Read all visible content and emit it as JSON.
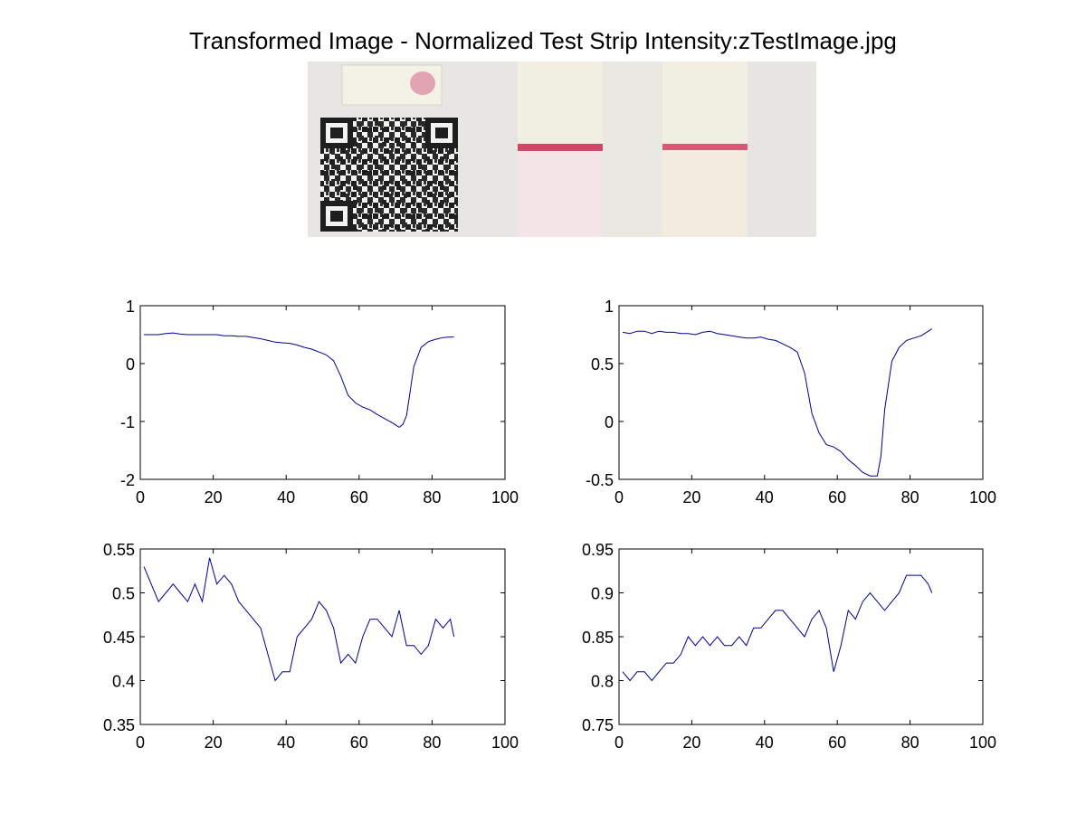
{
  "title": "Transformed Image - Normalized Test Strip Intensity:zTestImage.jpg",
  "colors": {
    "line": "#00008b",
    "axis": "#000000",
    "strip_line": "#d0466b",
    "qr": "#1e1e1e"
  },
  "chart_data": [
    {
      "type": "line",
      "xlim": [
        0,
        100
      ],
      "ylim": [
        -2,
        1
      ],
      "xticks": [
        "0",
        "20",
        "40",
        "60",
        "80",
        "100"
      ],
      "yticks": [
        "1",
        "0",
        "-1",
        "-2"
      ],
      "grid": false,
      "x": [
        1,
        3,
        5,
        7,
        9,
        11,
        13,
        15,
        17,
        19,
        21,
        23,
        25,
        27,
        29,
        31,
        33,
        35,
        37,
        39,
        41,
        43,
        45,
        47,
        49,
        51,
        53,
        55,
        57,
        59,
        61,
        63,
        65,
        67,
        69,
        71,
        72,
        73,
        75,
        77,
        79,
        81,
        83,
        85,
        86
      ],
      "y": [
        0.5,
        0.5,
        0.5,
        0.52,
        0.53,
        0.51,
        0.5,
        0.5,
        0.5,
        0.5,
        0.5,
        0.48,
        0.48,
        0.47,
        0.47,
        0.45,
        0.43,
        0.4,
        0.37,
        0.36,
        0.35,
        0.32,
        0.28,
        0.25,
        0.2,
        0.15,
        0.05,
        -0.22,
        -0.55,
        -0.68,
        -0.75,
        -0.8,
        -0.88,
        -0.95,
        -1.02,
        -1.1,
        -1.05,
        -0.9,
        -0.05,
        0.28,
        0.38,
        0.42,
        0.45,
        0.46,
        0.46
      ]
    },
    {
      "type": "line",
      "xlim": [
        0,
        100
      ],
      "ylim": [
        -0.5,
        1
      ],
      "xticks": [
        "0",
        "20",
        "40",
        "60",
        "80",
        "100"
      ],
      "yticks": [
        "1",
        "0.5",
        "0",
        "-0.5"
      ],
      "grid": false,
      "x": [
        1,
        3,
        5,
        7,
        9,
        11,
        13,
        15,
        17,
        19,
        21,
        23,
        25,
        27,
        29,
        31,
        33,
        35,
        37,
        39,
        41,
        43,
        45,
        47,
        49,
        51,
        53,
        55,
        57,
        59,
        61,
        63,
        65,
        67,
        69,
        71,
        72,
        73,
        75,
        77,
        79,
        81,
        83,
        85,
        86
      ],
      "y": [
        0.77,
        0.76,
        0.78,
        0.78,
        0.76,
        0.78,
        0.77,
        0.77,
        0.76,
        0.76,
        0.75,
        0.77,
        0.78,
        0.76,
        0.75,
        0.74,
        0.73,
        0.72,
        0.72,
        0.73,
        0.71,
        0.7,
        0.67,
        0.64,
        0.6,
        0.42,
        0.07,
        -0.1,
        -0.2,
        -0.22,
        -0.26,
        -0.33,
        -0.38,
        -0.44,
        -0.47,
        -0.47,
        -0.3,
        0.1,
        0.52,
        0.64,
        0.7,
        0.72,
        0.74,
        0.78,
        0.8
      ]
    },
    {
      "type": "line",
      "xlim": [
        0,
        100
      ],
      "ylim": [
        0.35,
        0.55
      ],
      "xticks": [
        "0",
        "20",
        "40",
        "60",
        "80",
        "100"
      ],
      "yticks": [
        "0.55",
        "0.5",
        "0.45",
        "0.4",
        "0.35"
      ],
      "grid": false,
      "x": [
        1,
        3,
        5,
        7,
        9,
        11,
        13,
        15,
        17,
        19,
        21,
        23,
        25,
        27,
        29,
        31,
        33,
        35,
        37,
        39,
        41,
        43,
        45,
        47,
        49,
        51,
        53,
        55,
        57,
        59,
        61,
        63,
        65,
        67,
        69,
        71,
        73,
        75,
        77,
        79,
        81,
        83,
        85,
        86
      ],
      "y": [
        0.53,
        0.51,
        0.49,
        0.5,
        0.51,
        0.5,
        0.49,
        0.51,
        0.49,
        0.54,
        0.51,
        0.52,
        0.51,
        0.49,
        0.48,
        0.47,
        0.46,
        0.43,
        0.4,
        0.41,
        0.41,
        0.45,
        0.46,
        0.47,
        0.49,
        0.48,
        0.46,
        0.42,
        0.43,
        0.42,
        0.45,
        0.47,
        0.47,
        0.46,
        0.45,
        0.48,
        0.44,
        0.44,
        0.43,
        0.44,
        0.47,
        0.46,
        0.47,
        0.45
      ]
    },
    {
      "type": "line",
      "xlim": [
        0,
        100
      ],
      "ylim": [
        0.75,
        0.95
      ],
      "xticks": [
        "0",
        "20",
        "40",
        "60",
        "80",
        "100"
      ],
      "yticks": [
        "0.95",
        "0.9",
        "0.85",
        "0.8",
        "0.75"
      ],
      "grid": false,
      "x": [
        1,
        3,
        5,
        7,
        9,
        11,
        13,
        15,
        17,
        19,
        21,
        23,
        25,
        27,
        29,
        31,
        33,
        35,
        37,
        39,
        41,
        43,
        45,
        47,
        49,
        51,
        53,
        55,
        57,
        59,
        61,
        63,
        65,
        67,
        69,
        71,
        73,
        75,
        77,
        79,
        81,
        83,
        85,
        86
      ],
      "y": [
        0.81,
        0.8,
        0.81,
        0.81,
        0.8,
        0.81,
        0.82,
        0.82,
        0.83,
        0.85,
        0.84,
        0.85,
        0.84,
        0.85,
        0.84,
        0.84,
        0.85,
        0.84,
        0.86,
        0.86,
        0.87,
        0.88,
        0.88,
        0.87,
        0.86,
        0.85,
        0.87,
        0.88,
        0.86,
        0.81,
        0.84,
        0.88,
        0.87,
        0.89,
        0.9,
        0.89,
        0.88,
        0.89,
        0.9,
        0.92,
        0.92,
        0.92,
        0.91,
        0.9
      ]
    }
  ]
}
